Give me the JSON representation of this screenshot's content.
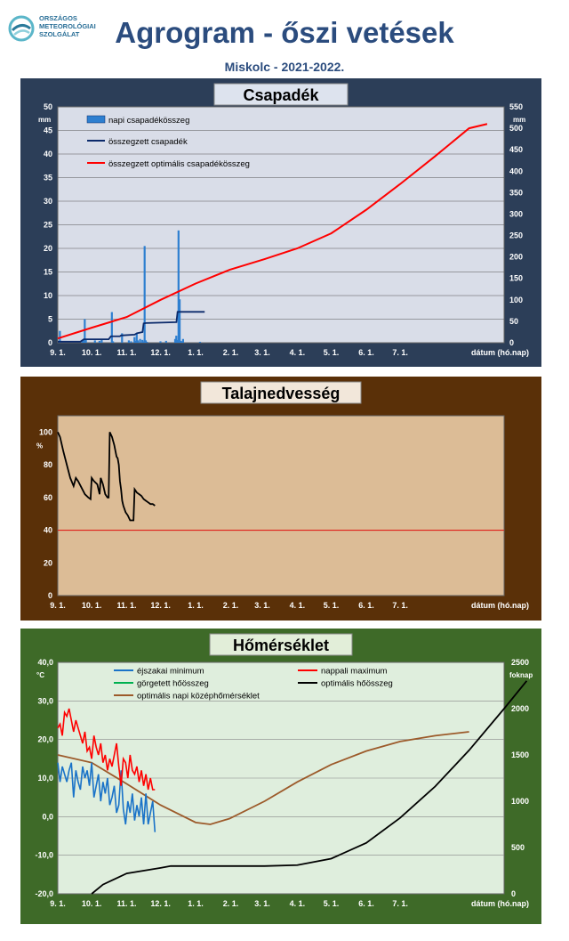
{
  "header": {
    "logo_lines": [
      "ORSZÁGOS",
      "METEOROLÓGIAI",
      "SZOLGÁLAT"
    ],
    "title": "Agrogram - őszi vetések",
    "subtitle": "Miskolc - 2021-2022."
  },
  "colors": {
    "title_blue": "#2b4c7e",
    "panel1_frame": "#2c3e58",
    "panel1_plot": "#d9dde8",
    "panel2_frame": "#5a3008",
    "panel2_plot": "#dcbc96",
    "panel3_frame": "#3e6a28",
    "panel3_plot": "#dfeedd"
  },
  "chart_data": [
    {
      "type": "bar",
      "title": "Csapadék",
      "ylabel": "mm",
      "y2label": "mm",
      "xlabel": "dátum (hó.nap)",
      "x_ticks": [
        "9. 1.",
        "10. 1.",
        "11. 1.",
        "12. 1.",
        "1. 1.",
        "2. 1.",
        "3. 1.",
        "4. 1.",
        "5. 1.",
        "6. 1.",
        "7. 1."
      ],
      "ylim": [
        0,
        50
      ],
      "y_ticks": [
        0,
        5,
        10,
        15,
        20,
        25,
        30,
        35,
        40,
        45,
        50
      ],
      "y2lim": [
        0,
        550
      ],
      "y2_ticks": [
        0,
        50,
        100,
        150,
        200,
        250,
        300,
        350,
        400,
        450,
        500,
        550
      ],
      "legend": [
        "napi csapadékösszeg",
        "összegzett csapadék",
        "összegzett optimális  csapadékösszeg"
      ],
      "daily": [
        [
          1,
          2.5
        ],
        [
          21,
          0.4
        ],
        [
          22,
          0.6
        ],
        [
          23,
          5
        ],
        [
          24,
          0.8
        ],
        [
          32,
          0.5
        ],
        [
          36,
          0.4
        ],
        [
          38,
          0.6
        ],
        [
          47,
          6.5
        ],
        [
          48,
          0.3
        ],
        [
          56,
          2
        ],
        [
          62,
          0.5
        ],
        [
          64,
          0.3
        ],
        [
          67,
          1.2
        ],
        [
          68,
          0.4
        ],
        [
          69,
          2
        ],
        [
          70,
          0.5
        ],
        [
          72,
          0.8
        ],
        [
          74,
          0.6
        ],
        [
          75,
          0.3
        ],
        [
          76,
          20.5
        ],
        [
          77,
          0.5
        ],
        [
          78,
          0.2
        ],
        [
          90,
          0.3
        ],
        [
          95,
          0.4
        ],
        [
          103,
          0.8
        ],
        [
          104,
          1.5
        ],
        [
          105,
          0.6
        ],
        [
          106,
          23.8
        ],
        [
          107,
          9.2
        ],
        [
          108,
          0.4
        ],
        [
          109,
          0.3
        ],
        [
          110,
          0.8
        ],
        [
          125,
          0.2
        ]
      ],
      "cumulative": [
        [
          0,
          2.5
        ],
        [
          20,
          2.5
        ],
        [
          23,
          8
        ],
        [
          45,
          8
        ],
        [
          47,
          15
        ],
        [
          55,
          15
        ],
        [
          56,
          17
        ],
        [
          68,
          19
        ],
        [
          70,
          22
        ],
        [
          75,
          25
        ],
        [
          76,
          45
        ],
        [
          78,
          46
        ],
        [
          105,
          48
        ],
        [
          106,
          72
        ],
        [
          107,
          72
        ],
        [
          110,
          72
        ],
        [
          130,
          72
        ]
      ],
      "optimal_cumulative": [
        [
          0,
          10
        ],
        [
          30,
          35
        ],
        [
          61,
          60
        ],
        [
          91,
          100
        ],
        [
          122,
          138
        ],
        [
          152,
          170
        ],
        [
          183,
          195
        ],
        [
          212,
          220
        ],
        [
          242,
          255
        ],
        [
          273,
          310
        ],
        [
          303,
          370
        ],
        [
          334,
          435
        ],
        [
          364,
          500
        ],
        [
          380,
          510
        ]
      ]
    },
    {
      "type": "line",
      "title": "Talajnedvesség",
      "ylabel": "%",
      "xlabel": "dátum (hó.nap)",
      "x_ticks": [
        "9. 1.",
        "10. 1.",
        "11. 1.",
        "12. 1.",
        "1. 1.",
        "2. 1.",
        "3. 1.",
        "4. 1.",
        "5. 1.",
        "6. 1.",
        "7. 1."
      ],
      "ylim": [
        0,
        110
      ],
      "y_ticks": [
        0,
        20,
        40,
        60,
        80,
        100
      ],
      "threshold": 40,
      "soil_moisture": [
        [
          0,
          100
        ],
        [
          2,
          97
        ],
        [
          5,
          88
        ],
        [
          8,
          80
        ],
        [
          11,
          72
        ],
        [
          14,
          67
        ],
        [
          16,
          72
        ],
        [
          18,
          70
        ],
        [
          21,
          66
        ],
        [
          24,
          62
        ],
        [
          27,
          60
        ],
        [
          29,
          59
        ],
        [
          30,
          72
        ],
        [
          32,
          70
        ],
        [
          35,
          68
        ],
        [
          37,
          62
        ],
        [
          38,
          72
        ],
        [
          40,
          68
        ],
        [
          42,
          62
        ],
        [
          44,
          60
        ],
        [
          45,
          60
        ],
        [
          46,
          100
        ],
        [
          48,
          97
        ],
        [
          50,
          92
        ],
        [
          52,
          85
        ],
        [
          53,
          84
        ],
        [
          54,
          80
        ],
        [
          55,
          70
        ],
        [
          56,
          65
        ],
        [
          57,
          58
        ],
        [
          58,
          55
        ],
        [
          60,
          51
        ],
        [
          62,
          49
        ],
        [
          64,
          46
        ],
        [
          66,
          46
        ],
        [
          67,
          46
        ],
        [
          68,
          65
        ],
        [
          70,
          63
        ],
        [
          72,
          62
        ],
        [
          74,
          61
        ],
        [
          76,
          59
        ],
        [
          78,
          58
        ],
        [
          80,
          57
        ],
        [
          82,
          56
        ],
        [
          84,
          56
        ],
        [
          86,
          55
        ]
      ]
    },
    {
      "type": "line",
      "title": "Hőmérséklet",
      "ylabel": "°C",
      "y2label": "foknap",
      "xlabel": "dátum (hó.nap)",
      "x_ticks": [
        "9. 1.",
        "10. 1.",
        "11. 1.",
        "12. 1.",
        "1. 1.",
        "2. 1.",
        "3. 1.",
        "4. 1.",
        "5. 1.",
        "6. 1.",
        "7. 1."
      ],
      "y_tick_labels": [
        "-20,0",
        "-10,0",
        "0,0",
        "10,0",
        "20,0",
        "30,0",
        "40,0"
      ],
      "ylim": [
        -20,
        40
      ],
      "y2lim": [
        0,
        2500
      ],
      "y2_ticks": [
        0,
        500,
        1000,
        1500,
        2000,
        2500
      ],
      "legend": [
        "éjszakai minimum",
        "nappali maximum",
        "görgetett hőösszeg",
        "optimális hőösszeg",
        "optimális napi középhőmérséklet"
      ],
      "night_min": [
        [
          0,
          14
        ],
        [
          2,
          9
        ],
        [
          4,
          13
        ],
        [
          6,
          11
        ],
        [
          8,
          9
        ],
        [
          10,
          12
        ],
        [
          12,
          14
        ],
        [
          14,
          5
        ],
        [
          16,
          12
        ],
        [
          18,
          9
        ],
        [
          20,
          7
        ],
        [
          22,
          13
        ],
        [
          24,
          10
        ],
        [
          26,
          12
        ],
        [
          28,
          8
        ],
        [
          30,
          14
        ],
        [
          32,
          5
        ],
        [
          34,
          8
        ],
        [
          36,
          11
        ],
        [
          38,
          4
        ],
        [
          40,
          9
        ],
        [
          42,
          6
        ],
        [
          44,
          10
        ],
        [
          46,
          3
        ],
        [
          48,
          5
        ],
        [
          50,
          8
        ],
        [
          52,
          1
        ],
        [
          54,
          3
        ],
        [
          56,
          12
        ],
        [
          58,
          2
        ],
        [
          60,
          -2
        ],
        [
          62,
          4
        ],
        [
          64,
          1
        ],
        [
          66,
          6
        ],
        [
          68,
          -1
        ],
        [
          70,
          3
        ],
        [
          72,
          0
        ],
        [
          74,
          5
        ],
        [
          76,
          -2
        ],
        [
          78,
          6
        ],
        [
          80,
          -2
        ],
        [
          82,
          1
        ],
        [
          84,
          4
        ],
        [
          86,
          -4
        ]
      ],
      "day_max": [
        [
          0,
          23
        ],
        [
          2,
          24
        ],
        [
          4,
          21
        ],
        [
          6,
          27
        ],
        [
          8,
          26
        ],
        [
          10,
          28
        ],
        [
          12,
          25
        ],
        [
          14,
          22
        ],
        [
          16,
          25
        ],
        [
          18,
          23
        ],
        [
          20,
          21
        ],
        [
          22,
          19
        ],
        [
          24,
          22
        ],
        [
          26,
          17
        ],
        [
          28,
          18
        ],
        [
          30,
          15
        ],
        [
          32,
          21
        ],
        [
          34,
          18
        ],
        [
          36,
          16
        ],
        [
          38,
          19
        ],
        [
          40,
          14
        ],
        [
          42,
          16
        ],
        [
          44,
          12
        ],
        [
          46,
          15
        ],
        [
          48,
          13
        ],
        [
          50,
          16
        ],
        [
          52,
          19
        ],
        [
          54,
          13
        ],
        [
          56,
          8
        ],
        [
          58,
          15
        ],
        [
          60,
          14
        ],
        [
          62,
          10
        ],
        [
          64,
          16
        ],
        [
          66,
          12
        ],
        [
          68,
          11
        ],
        [
          70,
          13
        ],
        [
          72,
          9
        ],
        [
          74,
          12
        ],
        [
          76,
          8
        ],
        [
          78,
          11
        ],
        [
          80,
          7
        ],
        [
          82,
          10
        ],
        [
          84,
          7
        ],
        [
          86,
          7
        ]
      ],
      "optimal_daily_mean": [
        [
          0,
          16
        ],
        [
          30,
          14
        ],
        [
          61,
          8.5
        ],
        [
          91,
          3
        ],
        [
          122,
          -1.5
        ],
        [
          135,
          -2
        ],
        [
          152,
          -0.5
        ],
        [
          183,
          4
        ],
        [
          212,
          9
        ],
        [
          242,
          13.5
        ],
        [
          273,
          17
        ],
        [
          303,
          19.5
        ],
        [
          334,
          21
        ],
        [
          364,
          22
        ]
      ],
      "optimal_heat_sum": [
        [
          30,
          0
        ],
        [
          40,
          100
        ],
        [
          61,
          220
        ],
        [
          91,
          280
        ],
        [
          100,
          300
        ],
        [
          150,
          300
        ],
        [
          183,
          300
        ],
        [
          212,
          310
        ],
        [
          242,
          380
        ],
        [
          273,
          550
        ],
        [
          303,
          820
        ],
        [
          334,
          1160
        ],
        [
          364,
          1550
        ],
        [
          395,
          2000
        ],
        [
          415,
          2300
        ]
      ]
    }
  ]
}
